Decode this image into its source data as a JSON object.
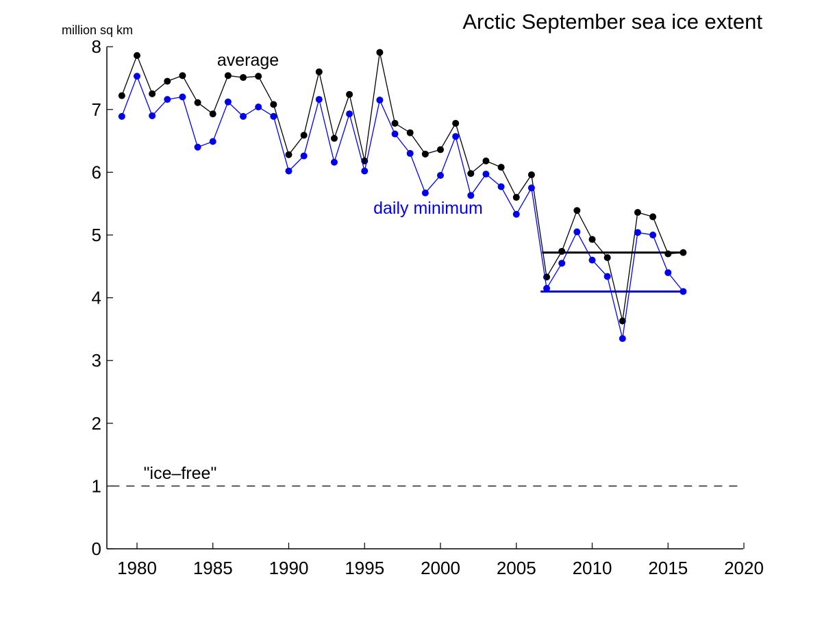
{
  "chart_data": {
    "type": "line",
    "title": "Arctic September sea ice extent",
    "ylabel": "million sq km",
    "xlabel": "",
    "xlim": [
      1978,
      2020
    ],
    "ylim": [
      0,
      8
    ],
    "xticks": [
      1980,
      1985,
      1990,
      1995,
      2000,
      2005,
      2010,
      2015,
      2020
    ],
    "yticks": [
      0,
      1,
      2,
      3,
      4,
      5,
      6,
      7,
      8
    ],
    "grid": false,
    "x": [
      1979,
      1980,
      1981,
      1982,
      1983,
      1984,
      1985,
      1986,
      1987,
      1988,
      1989,
      1990,
      1991,
      1992,
      1993,
      1994,
      1995,
      1996,
      1997,
      1998,
      1999,
      2000,
      2001,
      2002,
      2003,
      2004,
      2005,
      2006,
      2007,
      2008,
      2009,
      2010,
      2011,
      2012,
      2013,
      2014,
      2015,
      2016
    ],
    "series": [
      {
        "name": "average",
        "color": "#000000",
        "values": [
          7.22,
          7.86,
          7.25,
          7.45,
          7.54,
          7.11,
          6.93,
          7.54,
          7.51,
          7.53,
          7.08,
          6.28,
          6.59,
          7.6,
          6.54,
          7.24,
          6.18,
          7.91,
          6.78,
          6.63,
          6.29,
          6.36,
          6.78,
          5.98,
          6.18,
          6.08,
          5.6,
          5.96,
          4.33,
          4.74,
          5.39,
          4.93,
          4.64,
          3.63,
          5.36,
          5.29,
          4.7,
          4.72
        ]
      },
      {
        "name": "daily minimum",
        "color": "#0000ee",
        "values": [
          6.89,
          7.53,
          6.9,
          7.16,
          7.2,
          6.4,
          6.49,
          7.12,
          6.89,
          7.04,
          6.89,
          6.02,
          6.26,
          7.16,
          6.16,
          6.93,
          6.02,
          7.15,
          6.61,
          6.3,
          5.67,
          5.95,
          6.57,
          5.63,
          5.97,
          5.77,
          5.33,
          5.75,
          4.15,
          4.55,
          5.05,
          4.6,
          4.34,
          3.35,
          5.04,
          5.0,
          4.4,
          4.1
        ]
      }
    ],
    "reference_lines": [
      {
        "name": "average-2016-level",
        "value": 4.72,
        "from": 2006.7,
        "to": 2016,
        "color": "#000000"
      },
      {
        "name": "minimum-2016-level",
        "value": 4.1,
        "from": 2006.6,
        "to": 2016,
        "color": "#0000ee"
      },
      {
        "name": "ice-free-threshold",
        "value": 1,
        "from": 1978.3,
        "to": 2020,
        "color": "#000000",
        "dashed": true
      }
    ],
    "annotations": {
      "average": "average",
      "daily_minimum": "daily minimum",
      "ice_free": "\"ice–free\""
    }
  }
}
